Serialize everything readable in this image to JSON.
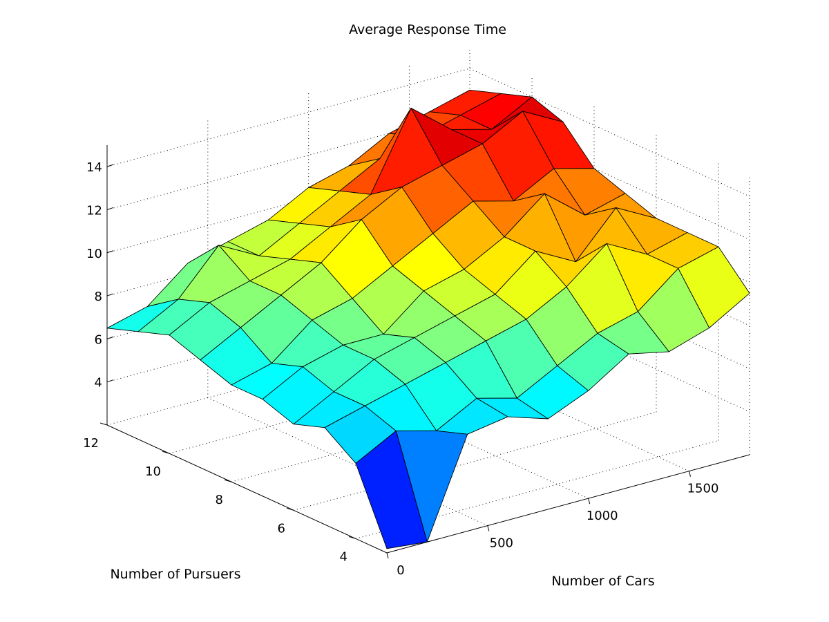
{
  "chart_data": {
    "type": "surface",
    "title": "Average Response Time",
    "xlabel": "Number of Cars",
    "ylabel": "Number of Pursuers",
    "zlabel": "",
    "xlim": [
      0,
      1800
    ],
    "ylim": [
      3,
      12
    ],
    "zlim": [
      2,
      15
    ],
    "colormap": "jet",
    "grid": true,
    "x_ticks": [
      0,
      500,
      1000,
      1500
    ],
    "y_ticks": [
      4,
      6,
      8,
      10,
      12
    ],
    "z_ticks": [
      4,
      6,
      8,
      10,
      12,
      14
    ],
    "x": [
      0,
      200,
      400,
      600,
      800,
      1000,
      1200,
      1400,
      1600,
      1800
    ],
    "y": [
      3,
      4,
      5,
      6,
      7,
      8,
      9,
      10,
      11,
      12
    ],
    "z": [
      [
        2.2,
        2.0,
        6.5,
        6.8,
        6.2,
        7.0,
        8.2,
        7.8,
        8.4,
        9.5
      ],
      [
        5.5,
        6.5,
        6.0,
        7.0,
        6.5,
        7.5,
        8.5,
        9.0,
        10.5,
        11.0
      ],
      [
        6.5,
        7.0,
        7.5,
        8.0,
        8.5,
        9.0,
        10.0,
        11.5,
        10.5,
        11.0
      ],
      [
        6.0,
        7.0,
        8.0,
        8.5,
        9.0,
        9.5,
        11.0,
        10.0,
        12.0,
        11.0
      ],
      [
        6.5,
        7.5,
        8.0,
        8.0,
        9.5,
        10.0,
        11.0,
        12.5,
        11.0,
        11.5
      ],
      [
        6.5,
        7.0,
        8.5,
        9.0,
        10.0,
        11.0,
        12.0,
        11.5,
        12.5,
        12.0
      ],
      [
        7.0,
        8.0,
        9.0,
        10.0,
        11.5,
        12.5,
        13.0,
        13.5,
        14.5,
        13.5
      ],
      [
        7.5,
        8.5,
        9.0,
        9.5,
        10.5,
        11.5,
        15.0,
        13.5,
        13.0,
        14.0
      ],
      [
        7.0,
        8.0,
        10.0,
        9.0,
        10.0,
        11.0,
        12.0,
        12.5,
        13.0,
        13.5
      ],
      [
        6.5,
        7.0,
        8.5,
        9.0,
        9.5,
        10.5,
        11.0,
        12.0,
        12.5,
        13.0
      ]
    ]
  }
}
